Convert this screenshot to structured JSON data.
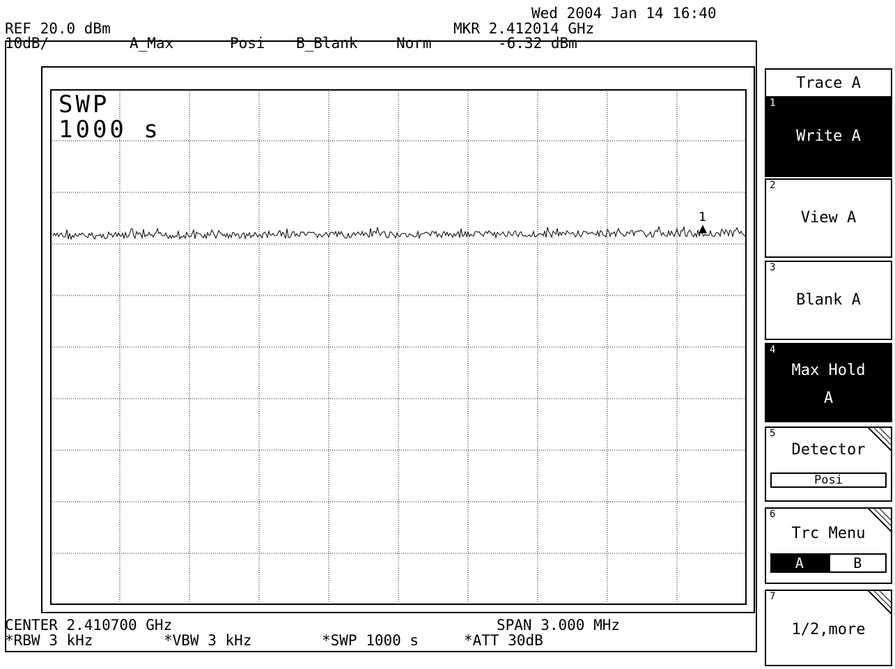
{
  "header": {
    "datetime": "Wed 2004 Jan 14 16:40",
    "ref": "REF 20.0 dBm",
    "scale": "10dB/",
    "trace_a": "A_Max",
    "detector": "Posi",
    "trace_b": "B_Blank",
    "mode": "Norm",
    "marker_freq": "MKR 2.412014 GHz",
    "marker_level": "-6.32 dBm"
  },
  "screen": {
    "swp_title": "SWP",
    "swp_value": "1000 s",
    "marker_label": "1"
  },
  "footer": {
    "center": "CENTER 2.410700 GHz",
    "span": "SPAN 3.000 MHz",
    "rbw": "*RBW 3 kHz",
    "vbw": "*VBW 3 kHz",
    "swp": "*SWP 1000 s",
    "att": "*ATT 30dB"
  },
  "softkeys": {
    "title": "Trace A",
    "items": [
      {
        "num": "1",
        "label": "Write A",
        "active": true
      },
      {
        "num": "2",
        "label": "View A",
        "active": false
      },
      {
        "num": "3",
        "label": "Blank A",
        "active": false
      },
      {
        "num": "4",
        "label": "Max Hold\nA",
        "active": true
      },
      {
        "num": "5",
        "label": "Detector",
        "sub": "Posi"
      },
      {
        "num": "6",
        "label": "Trc Menu",
        "a": "A",
        "b": "B"
      },
      {
        "num": "7",
        "label": "1/2,more"
      }
    ]
  },
  "colors": {
    "background": "#ffffff",
    "foreground": "#000000"
  },
  "trace": {
    "level_dbm": -6.32,
    "ref_level_dbm": 20.0,
    "db_per_div": 10
  }
}
